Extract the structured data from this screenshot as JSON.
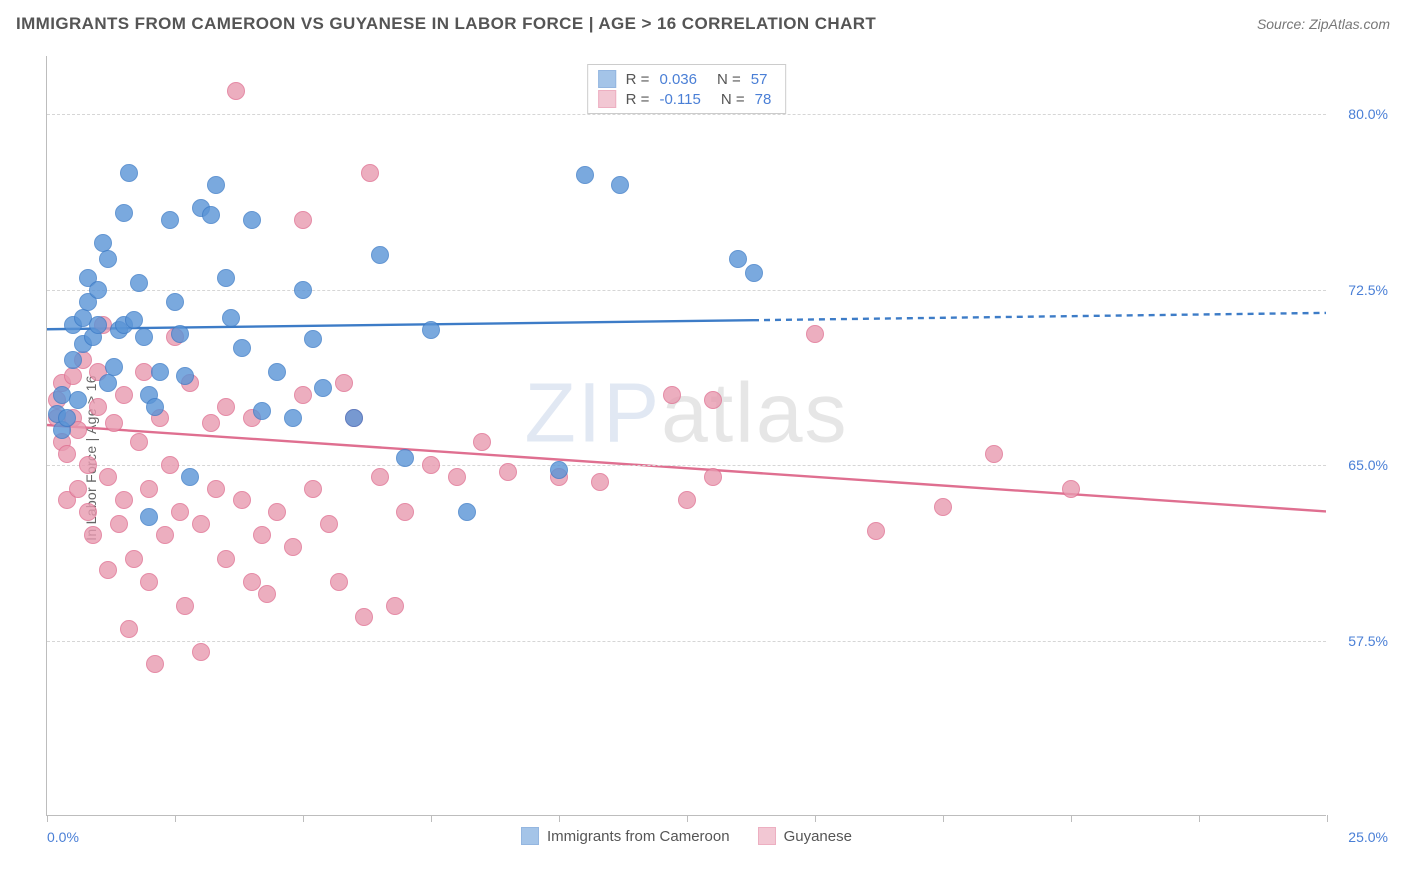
{
  "title": "IMMIGRANTS FROM CAMEROON VS GUYANESE IN LABOR FORCE | AGE > 16 CORRELATION CHART",
  "source": "Source: ZipAtlas.com",
  "ylabel": "In Labor Force | Age > 16",
  "watermark": {
    "part1": "ZIP",
    "part2": "atlas"
  },
  "chart": {
    "type": "scatter-with-regression",
    "background_color": "#ffffff",
    "grid_color": "#d6d6d6",
    "axis_color": "#bdbdbd",
    "label_color": "#4a7fd6",
    "xlim": [
      0,
      25
    ],
    "ylim": [
      50,
      82.5
    ],
    "xticks": [
      0,
      2.5,
      5,
      7.5,
      10,
      12.5,
      15,
      17.5,
      20,
      22.5,
      25
    ],
    "xtick_labels": {
      "0": "0.0%",
      "25": "25.0%"
    },
    "yticks": [
      57.5,
      65.0,
      72.5,
      80.0
    ],
    "ytick_labels": [
      "57.5%",
      "65.0%",
      "72.5%",
      "80.0%"
    ],
    "marker_radius": 9,
    "marker_fill_opacity": 0.35,
    "line_width": 2.4,
    "series": [
      {
        "name": "Immigrants from Cameroon",
        "color": "#5a94d6",
        "stroke": "#3d7cc7",
        "R": "0.036",
        "N": "57",
        "regression": {
          "x1": 0,
          "y1": 70.8,
          "x2": 25,
          "y2": 71.5,
          "solid_until_x": 13.8
        },
        "points": [
          [
            0.2,
            67.2
          ],
          [
            0.3,
            68.0
          ],
          [
            0.3,
            66.5
          ],
          [
            0.4,
            67.0
          ],
          [
            0.5,
            71.0
          ],
          [
            0.5,
            69.5
          ],
          [
            0.6,
            67.8
          ],
          [
            0.7,
            70.2
          ],
          [
            0.7,
            71.3
          ],
          [
            0.8,
            72.0
          ],
          [
            0.8,
            73.0
          ],
          [
            0.9,
            70.5
          ],
          [
            1.0,
            71.0
          ],
          [
            1.0,
            72.5
          ],
          [
            1.1,
            74.5
          ],
          [
            1.2,
            73.8
          ],
          [
            1.2,
            68.5
          ],
          [
            1.3,
            69.2
          ],
          [
            1.4,
            70.8
          ],
          [
            1.5,
            71.0
          ],
          [
            1.5,
            75.8
          ],
          [
            1.6,
            77.5
          ],
          [
            1.7,
            71.2
          ],
          [
            1.8,
            72.8
          ],
          [
            1.9,
            70.5
          ],
          [
            2.0,
            68.0
          ],
          [
            2.0,
            62.8
          ],
          [
            2.1,
            67.5
          ],
          [
            2.2,
            69.0
          ],
          [
            2.4,
            75.5
          ],
          [
            2.5,
            72.0
          ],
          [
            2.6,
            70.6
          ],
          [
            2.7,
            68.8
          ],
          [
            2.8,
            64.5
          ],
          [
            3.0,
            76.0
          ],
          [
            3.2,
            75.7
          ],
          [
            3.3,
            77.0
          ],
          [
            3.5,
            73.0
          ],
          [
            3.6,
            71.3
          ],
          [
            3.8,
            70.0
          ],
          [
            4.0,
            75.5
          ],
          [
            4.2,
            67.3
          ],
          [
            4.5,
            69.0
          ],
          [
            4.8,
            67.0
          ],
          [
            5.0,
            72.5
          ],
          [
            5.2,
            70.4
          ],
          [
            5.4,
            68.3
          ],
          [
            6.0,
            67.0
          ],
          [
            6.5,
            74.0
          ],
          [
            7.0,
            65.3
          ],
          [
            7.5,
            70.8
          ],
          [
            8.2,
            63.0
          ],
          [
            10.0,
            64.8
          ],
          [
            10.5,
            77.4
          ],
          [
            11.2,
            77.0
          ],
          [
            13.5,
            73.8
          ],
          [
            13.8,
            73.2
          ]
        ]
      },
      {
        "name": "Guyanese",
        "color": "#e89ab0",
        "stroke": "#df6f90",
        "R": "-0.115",
        "N": "78",
        "regression": {
          "x1": 0,
          "y1": 66.7,
          "x2": 25,
          "y2": 63.0,
          "solid_until_x": 25
        },
        "points": [
          [
            0.2,
            67.0
          ],
          [
            0.2,
            67.8
          ],
          [
            0.3,
            66.0
          ],
          [
            0.3,
            68.5
          ],
          [
            0.4,
            65.5
          ],
          [
            0.4,
            63.5
          ],
          [
            0.5,
            67.0
          ],
          [
            0.5,
            68.8
          ],
          [
            0.6,
            64.0
          ],
          [
            0.6,
            66.5
          ],
          [
            0.7,
            69.5
          ],
          [
            0.8,
            65.0
          ],
          [
            0.8,
            63.0
          ],
          [
            0.9,
            62.0
          ],
          [
            1.0,
            67.5
          ],
          [
            1.0,
            69.0
          ],
          [
            1.1,
            71.0
          ],
          [
            1.2,
            64.5
          ],
          [
            1.2,
            60.5
          ],
          [
            1.3,
            66.8
          ],
          [
            1.4,
            62.5
          ],
          [
            1.5,
            68.0
          ],
          [
            1.5,
            63.5
          ],
          [
            1.6,
            58.0
          ],
          [
            1.7,
            61.0
          ],
          [
            1.8,
            66.0
          ],
          [
            1.9,
            69.0
          ],
          [
            2.0,
            64.0
          ],
          [
            2.0,
            60.0
          ],
          [
            2.1,
            56.5
          ],
          [
            2.2,
            67.0
          ],
          [
            2.3,
            62.0
          ],
          [
            2.4,
            65.0
          ],
          [
            2.5,
            70.5
          ],
          [
            2.6,
            63.0
          ],
          [
            2.7,
            59.0
          ],
          [
            2.8,
            68.5
          ],
          [
            3.0,
            62.5
          ],
          [
            3.0,
            57.0
          ],
          [
            3.2,
            66.8
          ],
          [
            3.3,
            64.0
          ],
          [
            3.5,
            67.5
          ],
          [
            3.5,
            61.0
          ],
          [
            3.7,
            81.0
          ],
          [
            3.8,
            63.5
          ],
          [
            4.0,
            60.0
          ],
          [
            4.0,
            67.0
          ],
          [
            4.2,
            62.0
          ],
          [
            4.3,
            59.5
          ],
          [
            4.5,
            63.0
          ],
          [
            4.8,
            61.5
          ],
          [
            5.0,
            68.0
          ],
          [
            5.0,
            75.5
          ],
          [
            5.2,
            64.0
          ],
          [
            5.5,
            62.5
          ],
          [
            5.7,
            60.0
          ],
          [
            5.8,
            68.5
          ],
          [
            6.0,
            67.0
          ],
          [
            6.2,
            58.5
          ],
          [
            6.3,
            77.5
          ],
          [
            6.5,
            64.5
          ],
          [
            6.8,
            59.0
          ],
          [
            7.0,
            63.0
          ],
          [
            7.5,
            65.0
          ],
          [
            8.0,
            64.5
          ],
          [
            8.5,
            66.0
          ],
          [
            9.0,
            64.7
          ],
          [
            10.0,
            64.5
          ],
          [
            10.8,
            64.3
          ],
          [
            12.2,
            68.0
          ],
          [
            12.5,
            63.5
          ],
          [
            13.0,
            64.5
          ],
          [
            13.0,
            67.8
          ],
          [
            15.0,
            70.6
          ],
          [
            16.2,
            62.2
          ],
          [
            17.5,
            63.2
          ],
          [
            18.5,
            65.5
          ],
          [
            20.0,
            64.0
          ]
        ]
      }
    ]
  },
  "legend": {
    "items": [
      {
        "label": "Immigrants from Cameroon",
        "color": "#5a94d6",
        "stroke": "#3d7cc7"
      },
      {
        "label": "Guyanese",
        "color": "#e89ab0",
        "stroke": "#df6f90"
      }
    ]
  }
}
